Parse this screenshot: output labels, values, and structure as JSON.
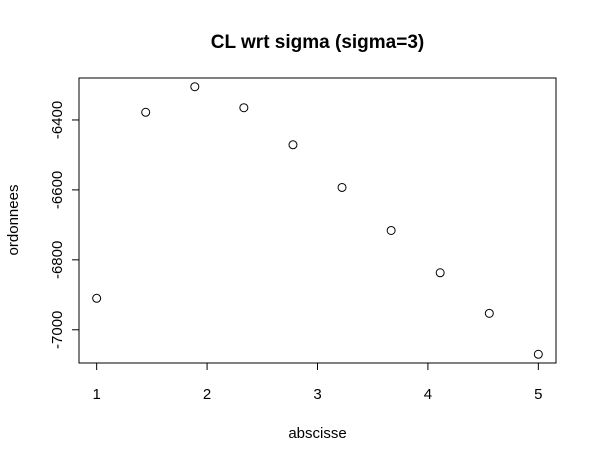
{
  "chart_data": {
    "type": "scatter",
    "title": "CL wrt sigma (sigma=3)",
    "xlabel": "abscisse",
    "ylabel": "ordonnees",
    "xlim": [
      0.84,
      5.16
    ],
    "ylim": [
      -7095,
      -6280
    ],
    "x_ticks": [
      1,
      2,
      3,
      4,
      5
    ],
    "y_ticks": [
      -7000,
      -6800,
      -6600,
      -6400
    ],
    "grid": false,
    "marker": "open-circle",
    "x": [
      1.0,
      1.444,
      1.889,
      2.333,
      2.778,
      3.222,
      3.667,
      4.111,
      4.556,
      5.0
    ],
    "y": [
      -6910,
      -6378,
      -6305,
      -6365,
      -6471,
      -6593,
      -6716,
      -6837,
      -6953,
      -7070
    ]
  }
}
